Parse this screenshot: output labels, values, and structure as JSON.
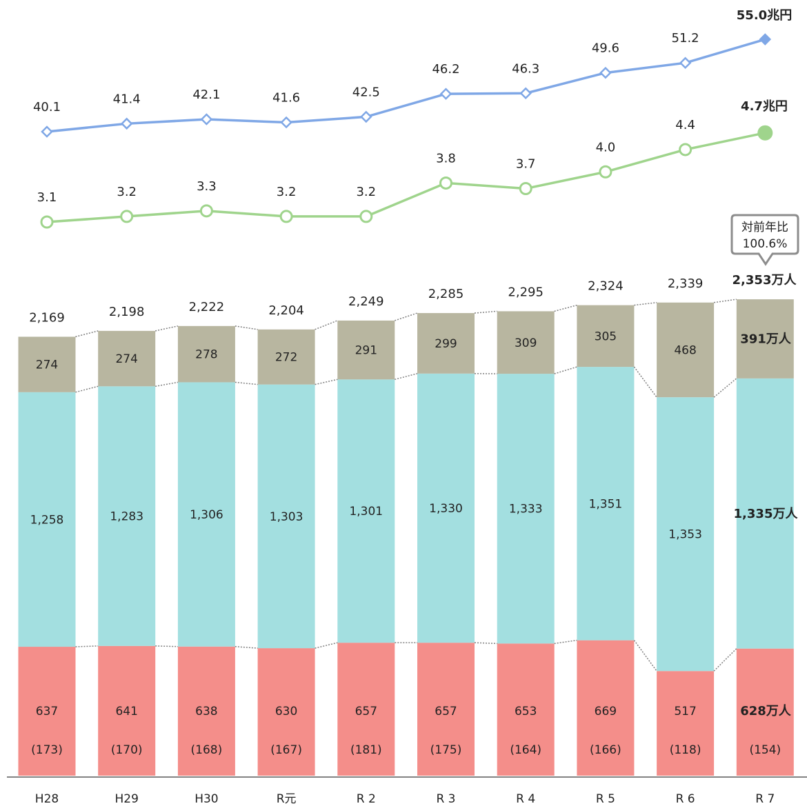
{
  "chart_data": [
    {
      "type": "line",
      "categories": [
        "H28",
        "H29",
        "H30",
        "R元",
        "R 2",
        "R 3",
        "R 4",
        "R 5",
        "R 6",
        "R 7"
      ],
      "series": [
        {
          "values": [
            40.1,
            41.4,
            42.1,
            41.6,
            42.5,
            46.2,
            46.3,
            49.6,
            51.2,
            55.0
          ],
          "labels": [
            "40.1",
            "41.4",
            "42.1",
            "41.6",
            "42.5",
            "46.2",
            "46.3",
            "49.6",
            "51.2",
            "55.0兆円"
          ],
          "color": "#7fa7e6",
          "marker": "diamond"
        },
        {
          "values": [
            3.1,
            3.2,
            3.3,
            3.2,
            3.2,
            3.8,
            3.7,
            4.0,
            4.4,
            4.7
          ],
          "labels": [
            "3.1",
            "3.2",
            "3.3",
            "3.2",
            "3.2",
            "3.8",
            "3.7",
            "4.0",
            "4.4",
            "4.7兆円"
          ],
          "color": "#9fd48c",
          "marker": "circle"
        }
      ]
    },
    {
      "type": "bar",
      "stacked": true,
      "categories": [
        "H28",
        "H29",
        "H30",
        "R元",
        "R 2",
        "R 3",
        "R 4",
        "R 5",
        "R 6",
        "R 7"
      ],
      "series": [
        {
          "values": [
            637,
            641,
            638,
            630,
            657,
            657,
            653,
            669,
            517,
            628
          ],
          "labels": [
            "637",
            "641",
            "638",
            "630",
            "657",
            "657",
            "653",
            "669",
            "517",
            "628万人"
          ],
          "sub_labels": [
            "(173)",
            "(170)",
            "(168)",
            "(167)",
            "(181)",
            "(175)",
            "(164)",
            "(166)",
            "(118)",
            "(154)"
          ],
          "color": "#f48e8a"
        },
        {
          "values": [
            1258,
            1283,
            1306,
            1303,
            1301,
            1330,
            1333,
            1351,
            1353,
            1335
          ],
          "labels": [
            "1,258",
            "1,283",
            "1,306",
            "1,303",
            "1,301",
            "1,330",
            "1,333",
            "1,351",
            "1,353",
            "1,335万人"
          ],
          "color": "#a3dfe0"
        },
        {
          "values": [
            274,
            274,
            278,
            272,
            291,
            299,
            309,
            305,
            468,
            391
          ],
          "labels": [
            "274",
            "274",
            "278",
            "272",
            "291",
            "299",
            "309",
            "305",
            "468",
            "391万人"
          ],
          "color": "#b8b6a0"
        }
      ],
      "totals": [
        2169,
        2198,
        2222,
        2204,
        2249,
        2285,
        2295,
        2324,
        2339,
        2353
      ],
      "total_labels": [
        "2,169",
        "2,198",
        "2,222",
        "2,204",
        "2,249",
        "2,285",
        "2,295",
        "2,324",
        "2,339",
        "2,353万人"
      ],
      "callout": {
        "line1": "対前年比",
        "line2": "100.6%"
      }
    }
  ]
}
